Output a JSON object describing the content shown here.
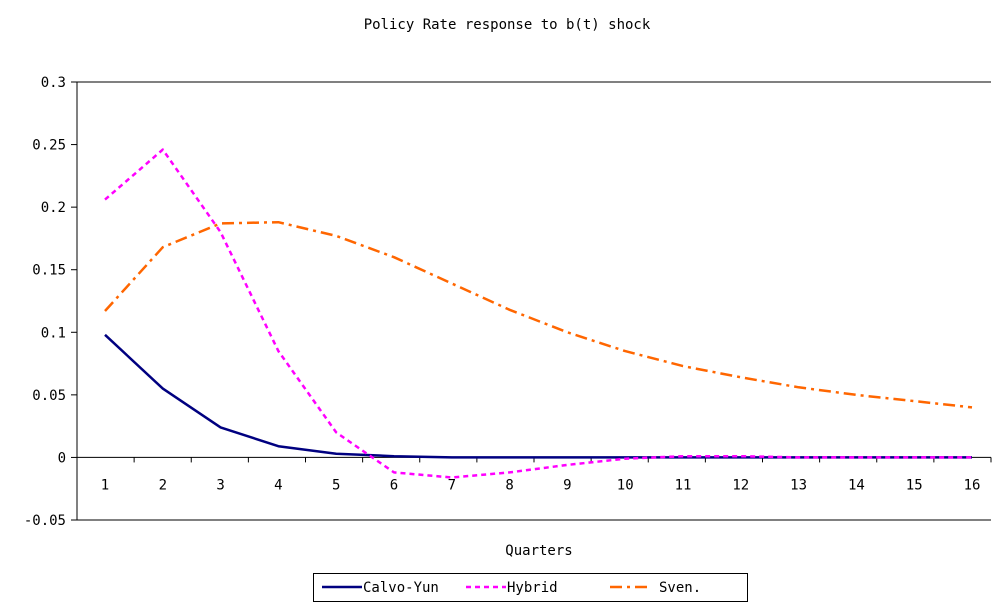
{
  "chart_data": {
    "type": "line",
    "title": "Policy Rate response to b(t) shock",
    "xlabel": "Quarters",
    "ylabel": "",
    "ylim": [
      -0.05,
      0.3
    ],
    "yticks": [
      "0.3",
      "0.25",
      "0.2",
      "0.15",
      "0.1",
      "0.05",
      "0",
      "-0.05"
    ],
    "ytick_values": [
      0.3,
      0.25,
      0.2,
      0.15,
      0.1,
      0.05,
      0,
      -0.05
    ],
    "categories": [
      "1",
      "2",
      "3",
      "4",
      "5",
      "6",
      "7",
      "8",
      "9",
      "10",
      "11",
      "12",
      "13",
      "14",
      "15",
      "16"
    ],
    "grid": false,
    "legend_position": "bottom",
    "series": [
      {
        "name": "Calvo-Yun",
        "color": "#000080",
        "style": "solid",
        "values": [
          0.098,
          0.055,
          0.024,
          0.009,
          0.003,
          0.001,
          0.0,
          0.0,
          0.0,
          0.0,
          0.0,
          0.0,
          0.0,
          0.0,
          0.0,
          0.0
        ]
      },
      {
        "name": "Hybrid",
        "color": "#ff00ff",
        "style": "dotted",
        "values": [
          0.206,
          0.246,
          0.18,
          0.085,
          0.02,
          -0.012,
          -0.016,
          -0.012,
          -0.006,
          -0.001,
          0.001,
          0.001,
          0.0,
          0.0,
          0.0,
          0.0
        ]
      },
      {
        "name": "Sven.",
        "color": "#ff6600",
        "style": "dashdot",
        "values": [
          0.117,
          0.168,
          0.187,
          0.188,
          0.177,
          0.16,
          0.139,
          0.118,
          0.1,
          0.085,
          0.073,
          0.064,
          0.056,
          0.05,
          0.045,
          0.04
        ]
      }
    ]
  }
}
